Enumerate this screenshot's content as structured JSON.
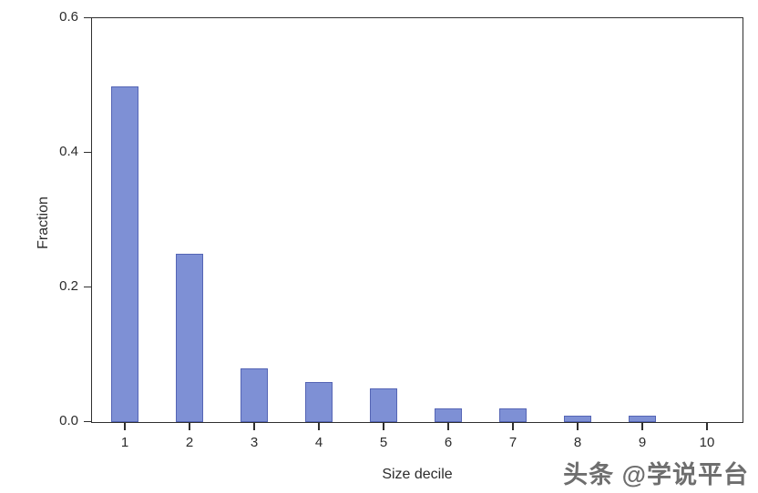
{
  "chart_data": {
    "type": "bar",
    "title": "",
    "categories": [
      "1",
      "2",
      "3",
      "4",
      "5",
      "6",
      "7",
      "8",
      "9",
      "10"
    ],
    "values": [
      0.5,
      0.25,
      0.08,
      0.06,
      0.05,
      0.02,
      0.02,
      0.01,
      0.01,
      0.0
    ],
    "xlabel": "Size decile",
    "ylabel": "Fraction",
    "ylim": [
      0.0,
      0.6
    ],
    "yticks": [
      0.0,
      0.2,
      0.4,
      0.6
    ],
    "ytick_labels": [
      "0.0",
      "0.2",
      "0.4",
      "0.6"
    ],
    "grid": false,
    "legend_position": "none",
    "frame": "full-box",
    "bar_fill": "#7e90d5",
    "bar_border": "#5565b5",
    "axis_color": "#2f2f2f"
  },
  "watermark": {
    "text": "头条 @学说平台"
  }
}
